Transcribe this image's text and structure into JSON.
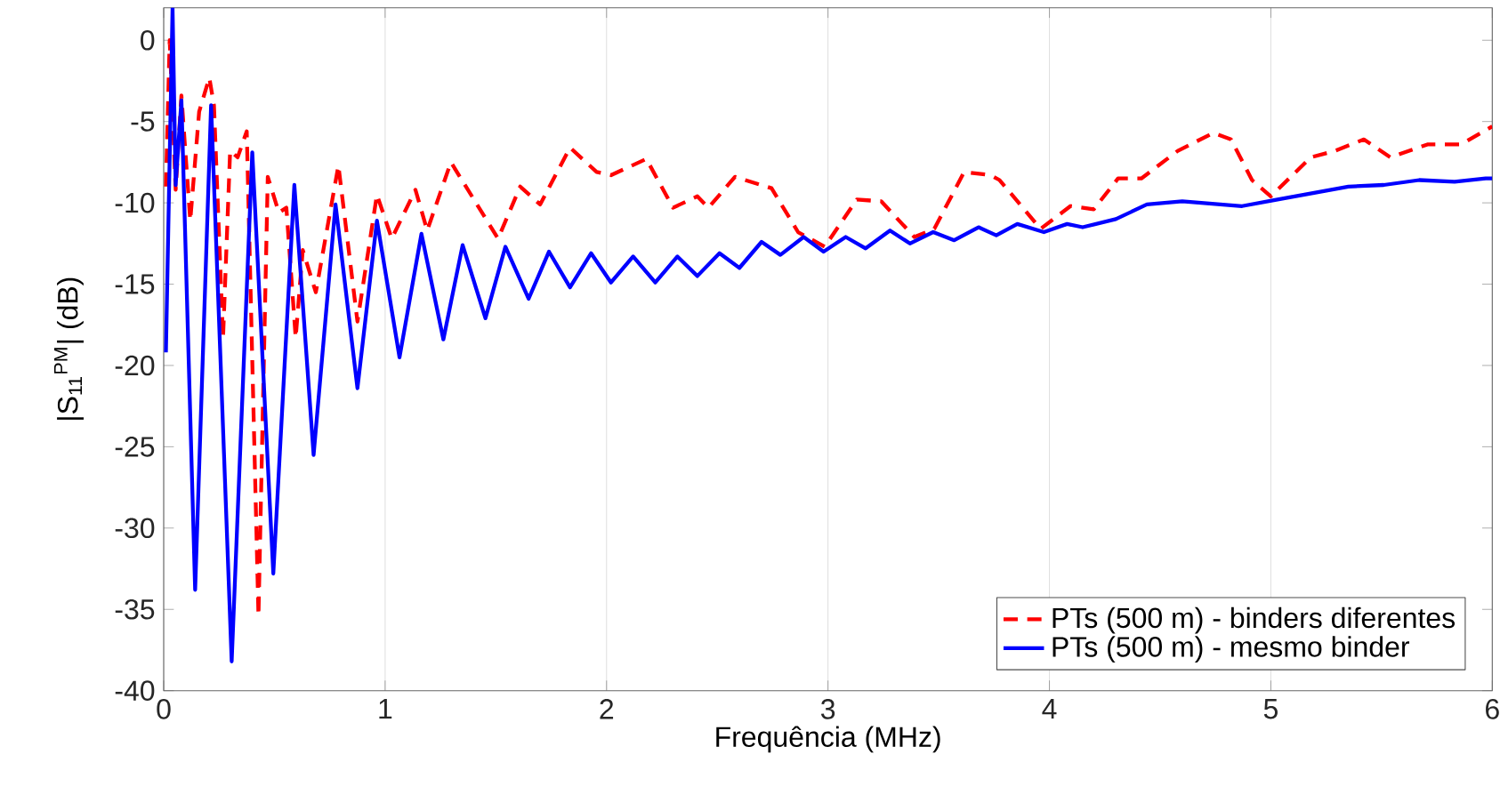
{
  "chart_data": {
    "type": "line",
    "xlabel": "Frequência (MHz)",
    "ylabel": "|S$_{11}$$^{PM}$| (dB)",
    "xlim": [
      0,
      6
    ],
    "ylim": [
      -40,
      2
    ],
    "xticks": [
      0,
      1,
      2,
      3,
      4,
      5,
      6
    ],
    "yticks": [
      -40,
      -35,
      -30,
      -25,
      -20,
      -15,
      -10,
      -5,
      0
    ],
    "grid": "x",
    "legend": "bottom right",
    "series": [
      {
        "name": "PTs (500 m) - binders diferentes",
        "color": "#ff0000",
        "line_style": "dashed",
        "x": [
          0.01,
          0.027,
          0.054,
          0.08,
          0.12,
          0.16,
          0.206,
          0.227,
          0.268,
          0.3,
          0.334,
          0.375,
          0.428,
          0.47,
          0.52,
          0.554,
          0.596,
          0.628,
          0.687,
          0.789,
          0.875,
          0.963,
          1.03,
          1.137,
          1.19,
          1.297,
          1.51,
          1.61,
          1.7,
          1.835,
          1.955,
          2.02,
          2.18,
          2.3,
          2.41,
          2.46,
          2.58,
          2.745,
          2.865,
          2.985,
          3.13,
          3.24,
          3.39,
          3.48,
          3.615,
          3.735,
          3.775,
          3.96,
          4.095,
          4.2,
          4.31,
          4.415,
          4.58,
          4.74,
          4.82,
          4.915,
          5.0,
          5.18,
          5.29,
          5.42,
          5.54,
          5.71,
          5.86,
          6.0
        ],
        "values": [
          -9,
          0,
          -9.2,
          -3.4,
          -11.1,
          -4.4,
          -2.3,
          -4.0,
          -18.3,
          -6.8,
          -7.2,
          -5.6,
          -35.4,
          -8.4,
          -10.6,
          -10.3,
          -18.3,
          -12.9,
          -15.5,
          -7.7,
          -17.3,
          -9.5,
          -12.2,
          -9.2,
          -11.7,
          -7.5,
          -12.2,
          -9.0,
          -10.1,
          -6.6,
          -8.1,
          -8.3,
          -7.3,
          -10.3,
          -9.6,
          -10.3,
          -8.4,
          -9.1,
          -11.8,
          -12.7,
          -9.8,
          -9.9,
          -12.1,
          -11.6,
          -8.1,
          -8.3,
          -8.6,
          -11.6,
          -10.2,
          -10.4,
          -8.5,
          -8.5,
          -6.8,
          -5.7,
          -6.1,
          -8.6,
          -9.6,
          -7.2,
          -6.8,
          -6.1,
          -7.2,
          -6.4,
          -6.4,
          -5.3
        ]
      },
      {
        "name": "PTs (500 m) - mesmo binder",
        "color": "#0000ff",
        "line_style": "solid",
        "x": [
          0.01,
          0.04,
          0.054,
          0.08,
          0.142,
          0.214,
          0.307,
          0.4,
          0.495,
          0.59,
          0.677,
          0.776,
          0.875,
          0.963,
          1.065,
          1.164,
          1.263,
          1.35,
          1.453,
          1.543,
          1.648,
          1.74,
          1.835,
          1.93,
          2.02,
          2.12,
          2.22,
          2.32,
          2.41,
          2.51,
          2.6,
          2.7,
          2.785,
          2.89,
          2.98,
          3.08,
          3.17,
          3.28,
          3.37,
          3.475,
          3.57,
          3.68,
          3.76,
          3.855,
          3.975,
          4.08,
          4.15,
          4.3,
          4.44,
          4.6,
          4.87,
          5.03,
          5.19,
          5.35,
          5.51,
          5.67,
          5.83,
          5.97,
          6.0
        ],
        "values": [
          -19.2,
          2,
          -8.9,
          -3.7,
          -33.8,
          -4.0,
          -38.2,
          -6.9,
          -32.8,
          -8.9,
          -25.5,
          -10.1,
          -21.4,
          -11.1,
          -19.5,
          -11.9,
          -18.4,
          -12.6,
          -17.1,
          -12.7,
          -15.9,
          -13.0,
          -15.2,
          -13.1,
          -14.9,
          -13.3,
          -14.9,
          -13.3,
          -14.5,
          -13.1,
          -14.0,
          -12.4,
          -13.2,
          -12.1,
          -13.0,
          -12.1,
          -12.8,
          -11.7,
          -12.5,
          -11.8,
          -12.3,
          -11.5,
          -12.0,
          -11.3,
          -11.8,
          -11.3,
          -11.5,
          -11.0,
          -10.1,
          -9.9,
          -10.2,
          -9.8,
          -9.4,
          -9.0,
          -8.9,
          -8.6,
          -8.7,
          -8.5,
          -8.5
        ]
      }
    ]
  }
}
